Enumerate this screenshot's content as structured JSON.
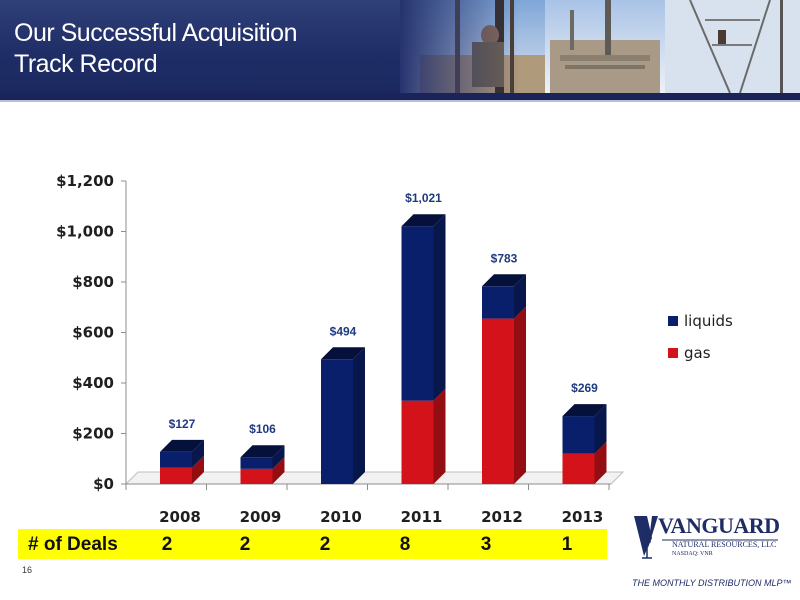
{
  "header": {
    "title_line1": "Our Successful Acquisition",
    "title_line2": "Track Record"
  },
  "deals": {
    "label": "# of Deals",
    "counts": [
      "2",
      "2",
      "2",
      "8",
      "3",
      "1"
    ]
  },
  "page_number": "16",
  "logo": {
    "name": "VANGUARD",
    "subtitle": "NATURAL RESOURCES, LLC",
    "ticker": "NASDAQ: VNR",
    "tagline": "THE MONTHLY DISTRIBUTION MLP™"
  },
  "colors": {
    "liquids": "#0a1f6b",
    "gas": "#d4121a",
    "header": "#1f2d66",
    "deals_bar": "#ffff00"
  },
  "chart_data": {
    "type": "bar",
    "stacked": true,
    "three_d": true,
    "categories": [
      "2008",
      "2009",
      "2010",
      "2011",
      "2012",
      "2013"
    ],
    "series": [
      {
        "name": "gas",
        "values": [
          65,
          60,
          0,
          330,
          655,
          120
        ]
      },
      {
        "name": "liquids",
        "values": [
          62,
          46,
          494,
          691,
          128,
          149
        ]
      }
    ],
    "totals": [
      127,
      106,
      494,
      1021,
      783,
      269
    ],
    "data_labels": [
      "$127",
      "$106",
      "$494",
      "$1,021",
      "$783",
      "$269"
    ],
    "y_ticks": [
      0,
      200,
      400,
      600,
      800,
      1000,
      1200
    ],
    "y_tick_labels": [
      "$0",
      "$200",
      "$400",
      "$600",
      "$800",
      "$1,000",
      "$1,200"
    ],
    "ylim": [
      0,
      1200
    ],
    "grid": false,
    "legend_position": "right",
    "legend": [
      "liquids",
      "gas"
    ]
  }
}
